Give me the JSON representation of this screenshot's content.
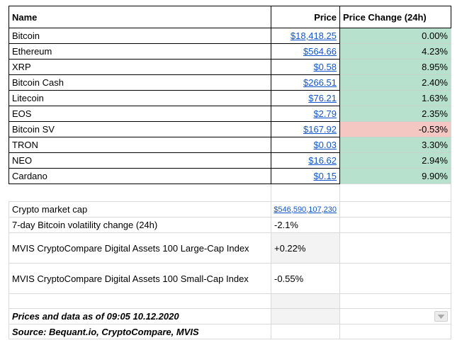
{
  "colors": {
    "positive_bg": "#b7e1cd",
    "negative_bg": "#f4c7c3",
    "link": "#1155cc",
    "shaded_cell": "#f3f3f3",
    "grid_light": "#d9d9d9",
    "grid_on_fill": "#c6d2ca",
    "border_dark": "#000000"
  },
  "table": {
    "columns": [
      "Name",
      "Price",
      "Price Change (24h)"
    ],
    "coins": [
      {
        "name": "Bitcoin",
        "price": "$18,418.25",
        "change": "0.00%",
        "direction": "up"
      },
      {
        "name": "Ethereum",
        "price": "$564.66",
        "change": "4.23%",
        "direction": "up"
      },
      {
        "name": "XRP",
        "price": "$0.58",
        "change": "8.95%",
        "direction": "up"
      },
      {
        "name": "Bitcoin Cash",
        "price": "$266.51",
        "change": "2.40%",
        "direction": "up"
      },
      {
        "name": "Litecoin",
        "price": "$76.21",
        "change": "1.63%",
        "direction": "up"
      },
      {
        "name": "EOS",
        "price": "$2.79",
        "change": "2.35%",
        "direction": "up"
      },
      {
        "name": "Bitcoin SV",
        "price": "$167.92",
        "change": "-0.53%",
        "direction": "down"
      },
      {
        "name": "TRON",
        "price": "$0.03",
        "change": "3.30%",
        "direction": "up"
      },
      {
        "name": "NEO",
        "price": "$16.62",
        "change": "2.94%",
        "direction": "up"
      },
      {
        "name": "Cardano",
        "price": "$0.15",
        "change": "9.90%",
        "direction": "up"
      }
    ]
  },
  "stats": [
    {
      "label": "Crypto market cap",
      "value": "$546,590,107,230",
      "is_link": true,
      "shaded": false,
      "tall": false,
      "value_right": true
    },
    {
      "label": "7-day Bitcoin volatility change (24h)",
      "value": "-2.1%",
      "is_link": false,
      "shaded": false,
      "tall": false,
      "value_right": false
    },
    {
      "label": "MVIS CryptoCompare Digital Assets 100 Large-Cap Index",
      "value": "+0.22%",
      "is_link": false,
      "shaded": true,
      "tall": true,
      "value_right": false
    },
    {
      "label": "MVIS CryptoCompare Digital Assets 100 Small-Cap Index",
      "value": "-0.55%",
      "is_link": false,
      "shaded": false,
      "tall": true,
      "value_right": false
    }
  ],
  "footer": {
    "note_date": "Prices and data as of 09:05 10.12.2020",
    "note_source": "Source: Bequant.io, CryptoCompare, MVIS"
  },
  "icons": {
    "dropdown": "filter-dropdown-icon"
  }
}
